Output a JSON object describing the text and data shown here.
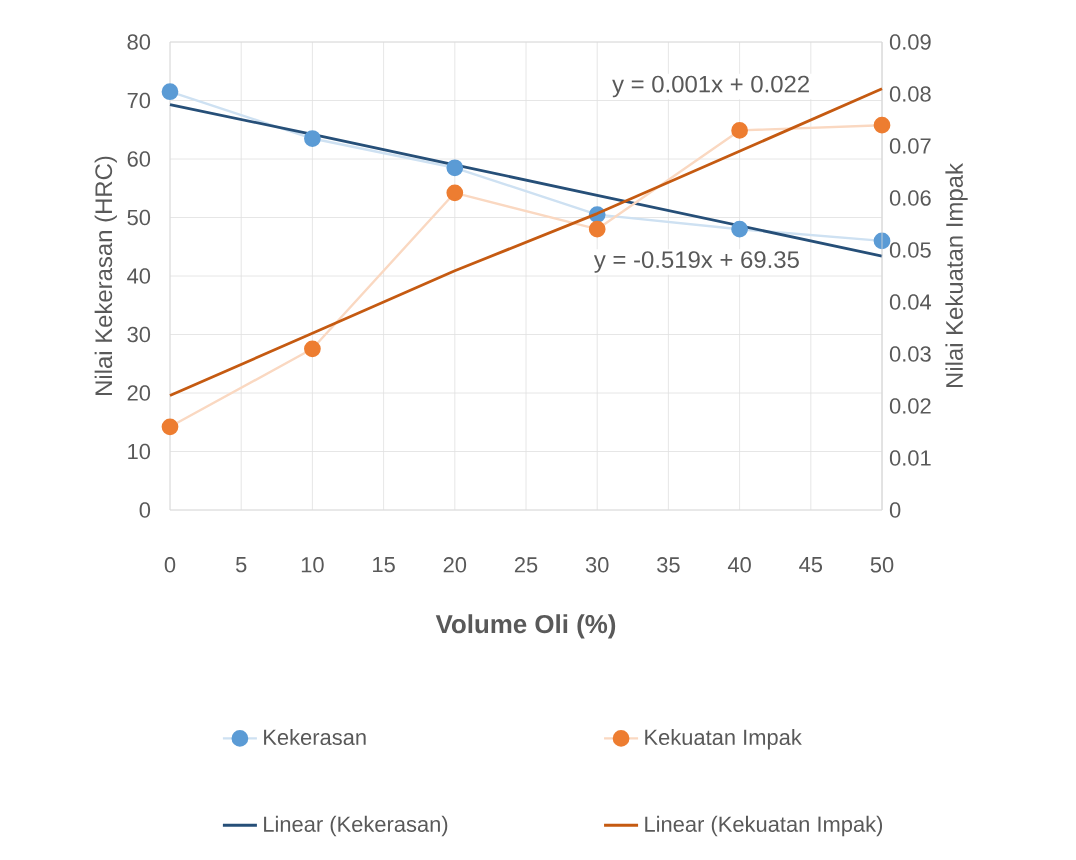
{
  "chart_data": {
    "type": "line",
    "xlabel": "Volume Oli (%)",
    "ylabel": "Nilai Kekerasan (HRC)",
    "y2label": "Nilai Kekuatan Impak",
    "x": [
      0,
      10,
      20,
      30,
      40,
      50
    ],
    "series": [
      {
        "name": "Kekerasan",
        "color": "#5b9bd5",
        "marker": "circle",
        "values": [
          71.5,
          63.5,
          58.5,
          50.5,
          48,
          46
        ]
      },
      {
        "name": "Kekuatan Impak",
        "color": "#ed7d31",
        "marker": "circle",
        "axis": "y2",
        "values": [
          0.016,
          0.031,
          0.061,
          0.054,
          0.073,
          0.074
        ]
      },
      {
        "name": "Linear (Kekerasan)",
        "color": "#264f78",
        "marker": "none",
        "values": [
          69.3,
          64.2,
          59.0,
          53.8,
          48.6,
          43.4
        ]
      },
      {
        "name": "Linear (Kekuatan Impak)",
        "color": "#c55a11",
        "marker": "none",
        "axis": "y2",
        "values": [
          0.022,
          0.034,
          0.046,
          0.057,
          0.069,
          0.081
        ]
      }
    ],
    "xlim": [
      0,
      50
    ],
    "xticks": [
      0,
      5,
      10,
      15,
      20,
      25,
      30,
      35,
      40,
      45,
      50
    ],
    "ylim": [
      0,
      80
    ],
    "yticks": [
      0,
      10,
      20,
      30,
      40,
      50,
      60,
      70,
      80
    ],
    "y2lim": [
      0,
      0.09
    ],
    "y2ticks": [
      0,
      0.01,
      0.02,
      0.03,
      0.04,
      0.05,
      0.06,
      0.07,
      0.08,
      0.09
    ],
    "annotations": [
      "y = 0.001x + 0.022",
      "y = -0.519x + 69.35"
    ],
    "grid": true,
    "legend": "bottom",
    "line_style": "solid"
  }
}
